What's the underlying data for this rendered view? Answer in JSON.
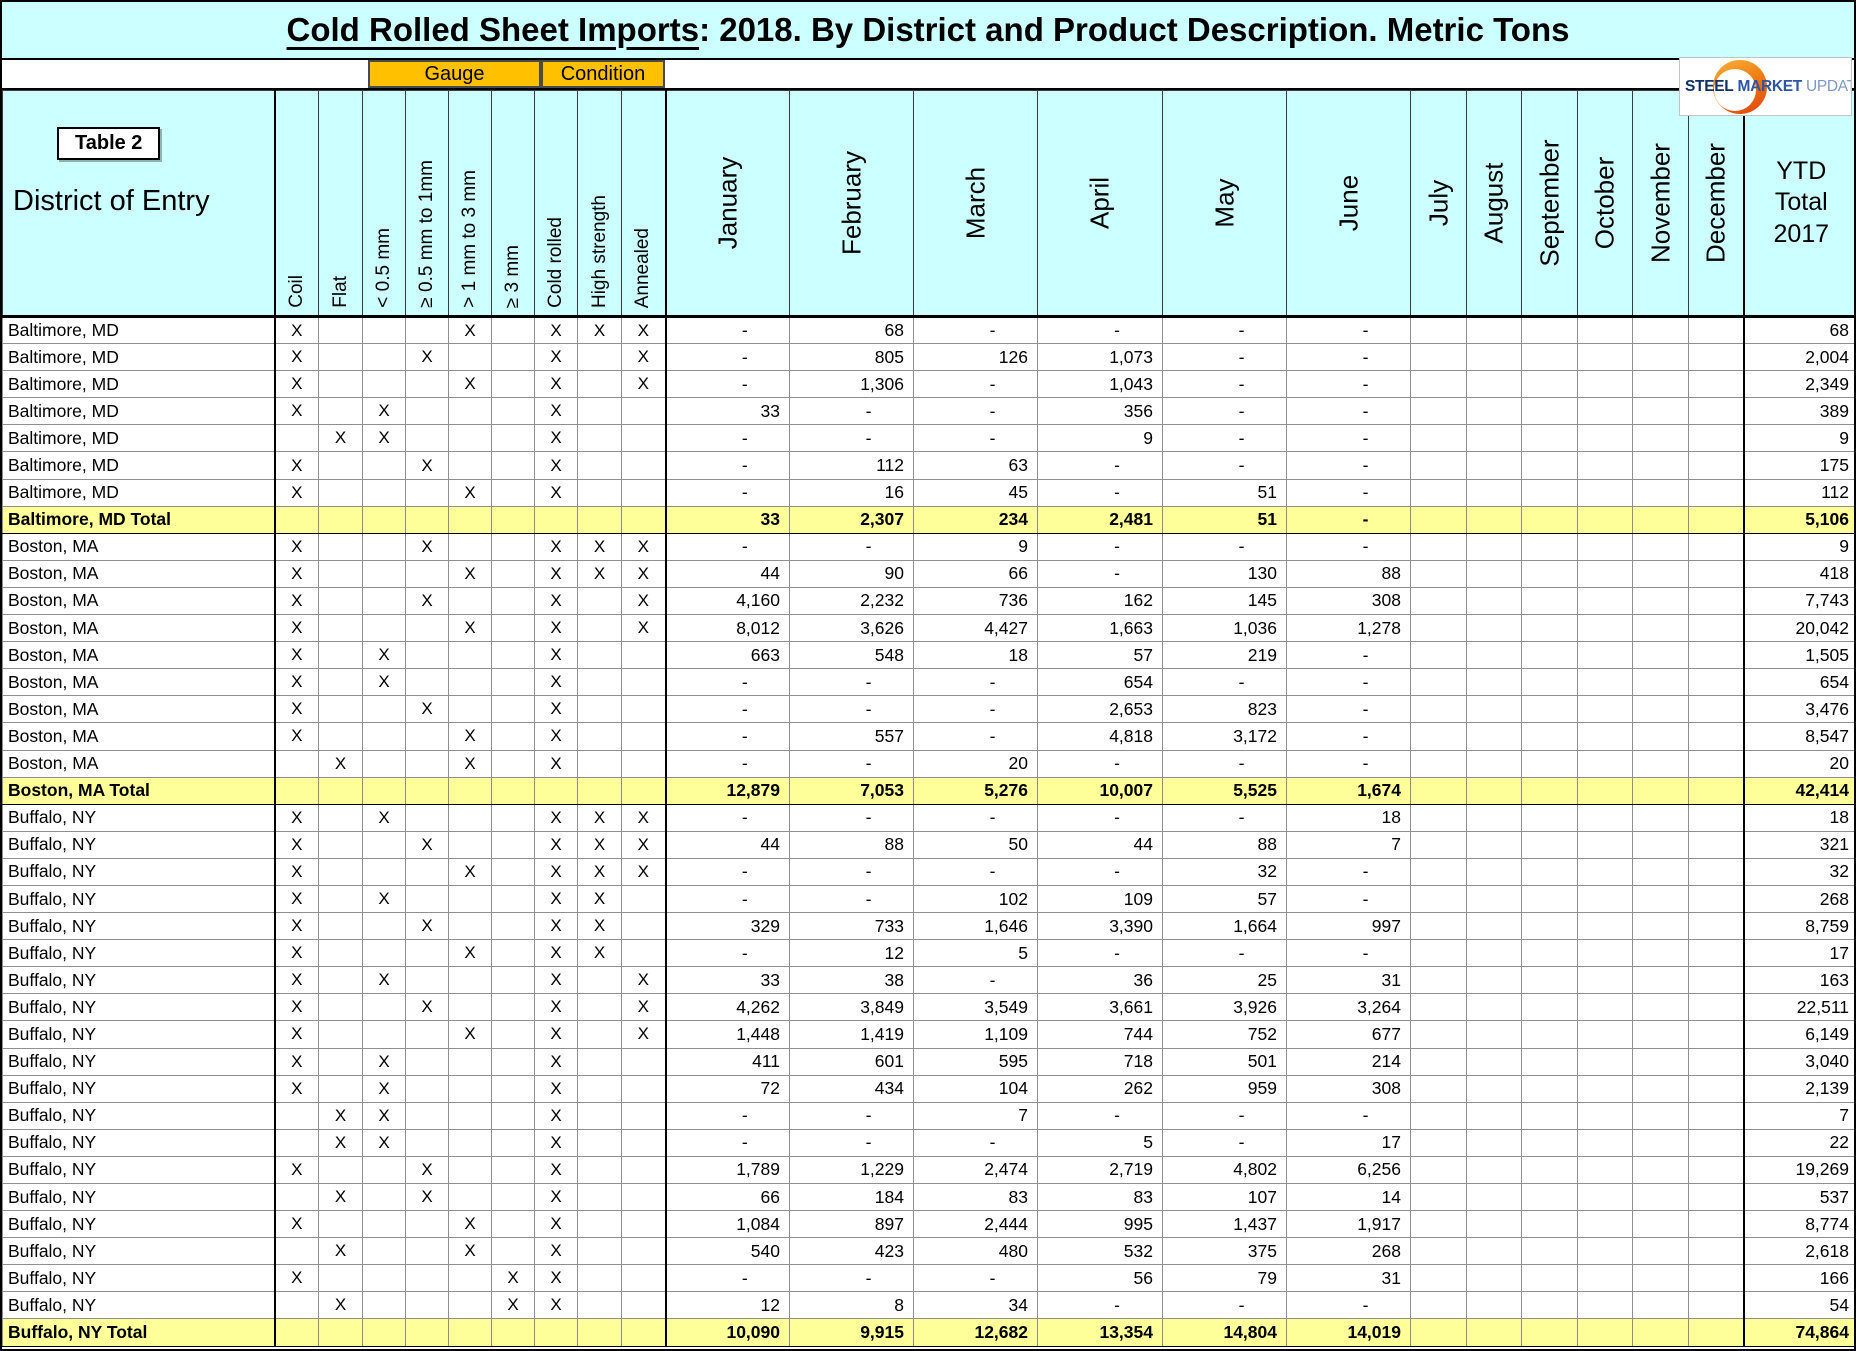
{
  "title": {
    "underlined": "Cold Rolled Sheet Imports",
    "rest": ": 2018. By District and Product Description. Metric Tons"
  },
  "logo": {
    "steel": "STEEL",
    "market": "MARKET",
    "update": "UPDATE"
  },
  "table_label": "Table 2",
  "colors": {
    "header_bg": "#CCFFFF",
    "total_bg": "#FFFF99",
    "group_bg": "#FFC000"
  },
  "header": {
    "district": "District of Entry",
    "gauge_group": "Gauge",
    "condition_group": "Condition",
    "attr_columns": [
      "Coil",
      "Flat",
      "< 0.5 mm",
      "≥ 0.5 mm to 1mm",
      "> 1 mm to 3 mm",
      "≥ 3 mm",
      "Cold rolled",
      "High strength",
      "Annealed"
    ],
    "months": [
      "January",
      "February",
      "March",
      "April",
      "May",
      "June",
      "July",
      "August",
      "September",
      "October",
      "November",
      "December"
    ],
    "ytd_lines": [
      "YTD",
      "Total",
      "2017"
    ]
  },
  "sections": [
    {
      "name": "Baltimore, MD",
      "rows": [
        {
          "attrs": [
            "X",
            "",
            "",
            "",
            "X",
            "",
            "X",
            "X",
            "X"
          ],
          "months": [
            "-",
            "68",
            "-",
            "-",
            "-",
            "-"
          ],
          "ytd": "68"
        },
        {
          "attrs": [
            "X",
            "",
            "",
            "X",
            "",
            "",
            "X",
            "",
            "X"
          ],
          "months": [
            "-",
            "805",
            "126",
            "1,073",
            "-",
            "-"
          ],
          "ytd": "2,004"
        },
        {
          "attrs": [
            "X",
            "",
            "",
            "",
            "X",
            "",
            "X",
            "",
            "X"
          ],
          "months": [
            "-",
            "1,306",
            "-",
            "1,043",
            "-",
            "-"
          ],
          "ytd": "2,349"
        },
        {
          "attrs": [
            "X",
            "",
            "X",
            "",
            "",
            "",
            "X",
            "",
            ""
          ],
          "months": [
            "33",
            "-",
            "-",
            "356",
            "-",
            "-"
          ],
          "ytd": "389"
        },
        {
          "attrs": [
            "",
            "X",
            "X",
            "",
            "",
            "",
            "X",
            "",
            ""
          ],
          "months": [
            "-",
            "-",
            "-",
            "9",
            "-",
            "-"
          ],
          "ytd": "9"
        },
        {
          "attrs": [
            "X",
            "",
            "",
            "X",
            "",
            "",
            "X",
            "",
            ""
          ],
          "months": [
            "-",
            "112",
            "63",
            "-",
            "-",
            "-"
          ],
          "ytd": "175"
        },
        {
          "attrs": [
            "X",
            "",
            "",
            "",
            "X",
            "",
            "X",
            "",
            ""
          ],
          "months": [
            "-",
            "16",
            "45",
            "-",
            "51",
            "-"
          ],
          "ytd": "112"
        }
      ],
      "total": {
        "label": "Baltimore, MD Total",
        "months": [
          "33",
          "2,307",
          "234",
          "2,481",
          "51",
          "-"
        ],
        "ytd": "5,106"
      }
    },
    {
      "name": "Boston, MA",
      "rows": [
        {
          "attrs": [
            "X",
            "",
            "",
            "X",
            "",
            "",
            "X",
            "X",
            "X"
          ],
          "months": [
            "-",
            "-",
            "9",
            "-",
            "-",
            "-"
          ],
          "ytd": "9"
        },
        {
          "attrs": [
            "X",
            "",
            "",
            "",
            "X",
            "",
            "X",
            "X",
            "X"
          ],
          "months": [
            "44",
            "90",
            "66",
            "-",
            "130",
            "88"
          ],
          "ytd": "418"
        },
        {
          "attrs": [
            "X",
            "",
            "",
            "X",
            "",
            "",
            "X",
            "",
            "X"
          ],
          "months": [
            "4,160",
            "2,232",
            "736",
            "162",
            "145",
            "308"
          ],
          "ytd": "7,743"
        },
        {
          "attrs": [
            "X",
            "",
            "",
            "",
            "X",
            "",
            "X",
            "",
            "X"
          ],
          "months": [
            "8,012",
            "3,626",
            "4,427",
            "1,663",
            "1,036",
            "1,278"
          ],
          "ytd": "20,042"
        },
        {
          "attrs": [
            "X",
            "",
            "X",
            "",
            "",
            "",
            "X",
            "",
            ""
          ],
          "months": [
            "663",
            "548",
            "18",
            "57",
            "219",
            "-"
          ],
          "ytd": "1,505"
        },
        {
          "attrs": [
            "X",
            "",
            "X",
            "",
            "",
            "",
            "X",
            "",
            ""
          ],
          "months": [
            "-",
            "-",
            "-",
            "654",
            "-",
            "-"
          ],
          "ytd": "654"
        },
        {
          "attrs": [
            "X",
            "",
            "",
            "X",
            "",
            "",
            "X",
            "",
            ""
          ],
          "months": [
            "-",
            "-",
            "-",
            "2,653",
            "823",
            "-"
          ],
          "ytd": "3,476"
        },
        {
          "attrs": [
            "X",
            "",
            "",
            "",
            "X",
            "",
            "X",
            "",
            ""
          ],
          "months": [
            "-",
            "557",
            "-",
            "4,818",
            "3,172",
            "-"
          ],
          "ytd": "8,547"
        },
        {
          "attrs": [
            "",
            "X",
            "",
            "",
            "X",
            "",
            "X",
            "",
            ""
          ],
          "months": [
            "-",
            "-",
            "20",
            "-",
            "-",
            "-"
          ],
          "ytd": "20"
        }
      ],
      "total": {
        "label": "Boston, MA Total",
        "months": [
          "12,879",
          "7,053",
          "5,276",
          "10,007",
          "5,525",
          "1,674"
        ],
        "ytd": "42,414"
      }
    },
    {
      "name": "Buffalo, NY",
      "rows": [
        {
          "attrs": [
            "X",
            "",
            "X",
            "",
            "",
            "",
            "X",
            "X",
            "X"
          ],
          "months": [
            "-",
            "-",
            "-",
            "-",
            "-",
            "18"
          ],
          "ytd": "18"
        },
        {
          "attrs": [
            "X",
            "",
            "",
            "X",
            "",
            "",
            "X",
            "X",
            "X"
          ],
          "months": [
            "44",
            "88",
            "50",
            "44",
            "88",
            "7"
          ],
          "ytd": "321"
        },
        {
          "attrs": [
            "X",
            "",
            "",
            "",
            "X",
            "",
            "X",
            "X",
            "X"
          ],
          "months": [
            "-",
            "-",
            "-",
            "-",
            "32",
            "-"
          ],
          "ytd": "32"
        },
        {
          "attrs": [
            "X",
            "",
            "X",
            "",
            "",
            "",
            "X",
            "X",
            ""
          ],
          "months": [
            "-",
            "-",
            "102",
            "109",
            "57",
            "-"
          ],
          "ytd": "268"
        },
        {
          "attrs": [
            "X",
            "",
            "",
            "X",
            "",
            "",
            "X",
            "X",
            ""
          ],
          "months": [
            "329",
            "733",
            "1,646",
            "3,390",
            "1,664",
            "997"
          ],
          "ytd": "8,759"
        },
        {
          "attrs": [
            "X",
            "",
            "",
            "",
            "X",
            "",
            "X",
            "X",
            ""
          ],
          "months": [
            "-",
            "12",
            "5",
            "-",
            "-",
            "-"
          ],
          "ytd": "17"
        },
        {
          "attrs": [
            "X",
            "",
            "X",
            "",
            "",
            "",
            "X",
            "",
            "X"
          ],
          "months": [
            "33",
            "38",
            "-",
            "36",
            "25",
            "31"
          ],
          "ytd": "163"
        },
        {
          "attrs": [
            "X",
            "",
            "",
            "X",
            "",
            "",
            "X",
            "",
            "X"
          ],
          "months": [
            "4,262",
            "3,849",
            "3,549",
            "3,661",
            "3,926",
            "3,264"
          ],
          "ytd": "22,511"
        },
        {
          "attrs": [
            "X",
            "",
            "",
            "",
            "X",
            "",
            "X",
            "",
            "X"
          ],
          "months": [
            "1,448",
            "1,419",
            "1,109",
            "744",
            "752",
            "677"
          ],
          "ytd": "6,149"
        },
        {
          "attrs": [
            "X",
            "",
            "X",
            "",
            "",
            "",
            "X",
            "",
            ""
          ],
          "months": [
            "411",
            "601",
            "595",
            "718",
            "501",
            "214"
          ],
          "ytd": "3,040"
        },
        {
          "attrs": [
            "X",
            "",
            "X",
            "",
            "",
            "",
            "X",
            "",
            ""
          ],
          "months": [
            "72",
            "434",
            "104",
            "262",
            "959",
            "308"
          ],
          "ytd": "2,139"
        },
        {
          "attrs": [
            "",
            "X",
            "X",
            "",
            "",
            "",
            "X",
            "",
            ""
          ],
          "months": [
            "-",
            "-",
            "7",
            "-",
            "-",
            "-"
          ],
          "ytd": "7"
        },
        {
          "attrs": [
            "",
            "X",
            "X",
            "",
            "",
            "",
            "X",
            "",
            ""
          ],
          "months": [
            "-",
            "-",
            "-",
            "5",
            "-",
            "17"
          ],
          "ytd": "22"
        },
        {
          "attrs": [
            "X",
            "",
            "",
            "X",
            "",
            "",
            "X",
            "",
            ""
          ],
          "months": [
            "1,789",
            "1,229",
            "2,474",
            "2,719",
            "4,802",
            "6,256"
          ],
          "ytd": "19,269"
        },
        {
          "attrs": [
            "",
            "X",
            "",
            "X",
            "",
            "",
            "X",
            "",
            ""
          ],
          "months": [
            "66",
            "184",
            "83",
            "83",
            "107",
            "14"
          ],
          "ytd": "537"
        },
        {
          "attrs": [
            "X",
            "",
            "",
            "",
            "X",
            "",
            "X",
            "",
            ""
          ],
          "months": [
            "1,084",
            "897",
            "2,444",
            "995",
            "1,437",
            "1,917"
          ],
          "ytd": "8,774"
        },
        {
          "attrs": [
            "",
            "X",
            "",
            "",
            "X",
            "",
            "X",
            "",
            ""
          ],
          "months": [
            "540",
            "423",
            "480",
            "532",
            "375",
            "268"
          ],
          "ytd": "2,618"
        },
        {
          "attrs": [
            "X",
            "",
            "",
            "",
            "",
            "X",
            "X",
            "",
            ""
          ],
          "months": [
            "-",
            "-",
            "-",
            "56",
            "79",
            "31"
          ],
          "ytd": "166"
        },
        {
          "attrs": [
            "",
            "X",
            "",
            "",
            "",
            "X",
            "X",
            "",
            ""
          ],
          "months": [
            "12",
            "8",
            "34",
            "-",
            "-",
            "-"
          ],
          "ytd": "54"
        }
      ],
      "total": {
        "label": "Buffalo, NY Total",
        "months": [
          "10,090",
          "9,915",
          "12,682",
          "13,354",
          "14,804",
          "14,019"
        ],
        "ytd": "74,864"
      }
    }
  ]
}
